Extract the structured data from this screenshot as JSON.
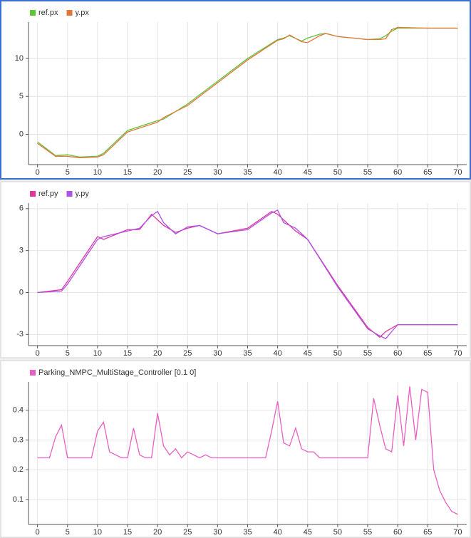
{
  "chart_data": [
    {
      "type": "line",
      "legend": "top-left",
      "grid": true,
      "x": [
        0,
        3,
        5,
        7,
        10,
        11,
        15,
        20,
        21,
        25,
        30,
        35,
        40,
        41,
        42,
        44,
        45,
        47,
        48,
        50,
        55,
        57,
        58,
        59,
        60,
        65,
        70
      ],
      "series": [
        {
          "name": "ref.px",
          "color": "#5fc437",
          "values": [
            -1,
            -2.8,
            -2.7,
            -3,
            -2.9,
            -2.5,
            0.5,
            1.8,
            2,
            4,
            7,
            10,
            12.5,
            12.7,
            13,
            12.3,
            12.7,
            13.2,
            13.3,
            12.9,
            12.5,
            12.6,
            13,
            13.6,
            14,
            14,
            14
          ]
        },
        {
          "name": "y.px",
          "color": "#e3773a",
          "values": [
            -1.2,
            -2.9,
            -2.9,
            -3.1,
            -3,
            -2.7,
            0.3,
            1.6,
            2.2,
            3.8,
            6.8,
            9.8,
            12.4,
            12.6,
            13.1,
            12.2,
            12.1,
            13,
            13.3,
            12.9,
            12.5,
            12.5,
            12.6,
            13.8,
            14.1,
            14,
            14
          ]
        }
      ],
      "xlim": [
        -1.5,
        71.5
      ],
      "xticks": [
        0,
        5,
        10,
        15,
        20,
        25,
        30,
        35,
        40,
        45,
        50,
        55,
        60,
        65,
        70
      ],
      "ylim": [
        -4,
        14.8
      ],
      "yticks": [
        0,
        5,
        10
      ]
    },
    {
      "type": "line",
      "legend": "top-left",
      "grid": true,
      "x": [
        0,
        4,
        5,
        10,
        11,
        15,
        17,
        19,
        20,
        21,
        23,
        25,
        27,
        30,
        35,
        39,
        40,
        41,
        43,
        45,
        50,
        55,
        57,
        58,
        60,
        65,
        70
      ],
      "series": [
        {
          "name": "ref.py",
          "color": "#e0389c",
          "values": [
            0,
            0.2,
            0.8,
            4,
            3.8,
            4.5,
            4.5,
            5.6,
            5.2,
            4.8,
            4.3,
            4.6,
            4.8,
            4.2,
            4.6,
            5.8,
            5.6,
            5.2,
            4.4,
            3.8,
            0.5,
            -2.5,
            -3.2,
            -2.8,
            -2.3,
            -2.3,
            -2.3
          ]
        },
        {
          "name": "y.py",
          "color": "#b051e6",
          "values": [
            0,
            0.1,
            0.6,
            3.8,
            4,
            4.4,
            4.6,
            5.5,
            5.8,
            5,
            4.2,
            4.7,
            4.8,
            4.2,
            4.5,
            5.7,
            5.9,
            5,
            4.6,
            3.8,
            0.4,
            -2.6,
            -3.1,
            -3.3,
            -2.3,
            -2.3,
            -2.3
          ]
        }
      ],
      "xlim": [
        -1.5,
        71.5
      ],
      "xticks": [
        0,
        5,
        10,
        15,
        20,
        25,
        30,
        35,
        40,
        45,
        50,
        55,
        60,
        65,
        70
      ],
      "ylim": [
        -3.8,
        6.4
      ],
      "yticks": [
        -3,
        0,
        3,
        6
      ]
    },
    {
      "type": "line",
      "legend": "top-left",
      "grid": true,
      "x": [
        0,
        1,
        2,
        3,
        4,
        5,
        6,
        7,
        8,
        9,
        10,
        11,
        12,
        13,
        14,
        15,
        16,
        17,
        18,
        19,
        20,
        21,
        22,
        23,
        24,
        25,
        26,
        27,
        28,
        29,
        30,
        31,
        32,
        33,
        34,
        35,
        36,
        37,
        38,
        39,
        40,
        41,
        42,
        43,
        44,
        45,
        46,
        47,
        48,
        49,
        50,
        51,
        52,
        53,
        54,
        55,
        56,
        57,
        58,
        59,
        60,
        61,
        62,
        63,
        64,
        65,
        66,
        67,
        68,
        69,
        70
      ],
      "series": [
        {
          "name": "Parking_NMPC_MultiStage_Controller [0.1 0]",
          "color": "#e85fc4",
          "values": [
            0.24,
            0.24,
            0.24,
            0.31,
            0.35,
            0.24,
            0.24,
            0.24,
            0.24,
            0.24,
            0.33,
            0.36,
            0.26,
            0.25,
            0.24,
            0.24,
            0.34,
            0.25,
            0.24,
            0.24,
            0.39,
            0.28,
            0.25,
            0.27,
            0.24,
            0.26,
            0.25,
            0.24,
            0.25,
            0.24,
            0.24,
            0.24,
            0.24,
            0.24,
            0.24,
            0.24,
            0.24,
            0.24,
            0.24,
            0.33,
            0.43,
            0.29,
            0.28,
            0.34,
            0.27,
            0.26,
            0.26,
            0.24,
            0.24,
            0.24,
            0.24,
            0.24,
            0.24,
            0.24,
            0.24,
            0.24,
            0.44,
            0.35,
            0.27,
            0.26,
            0.45,
            0.28,
            0.48,
            0.3,
            0.47,
            0.46,
            0.2,
            0.13,
            0.09,
            0.06,
            0.05
          ]
        }
      ],
      "xlim": [
        -1.5,
        71.5
      ],
      "xticks": [
        0,
        5,
        10,
        15,
        20,
        25,
        30,
        35,
        40,
        45,
        50,
        55,
        60,
        65,
        70
      ],
      "ylim": [
        0.016,
        0.495
      ],
      "yticks": [
        0.1,
        0.2,
        0.3,
        0.4
      ]
    }
  ]
}
